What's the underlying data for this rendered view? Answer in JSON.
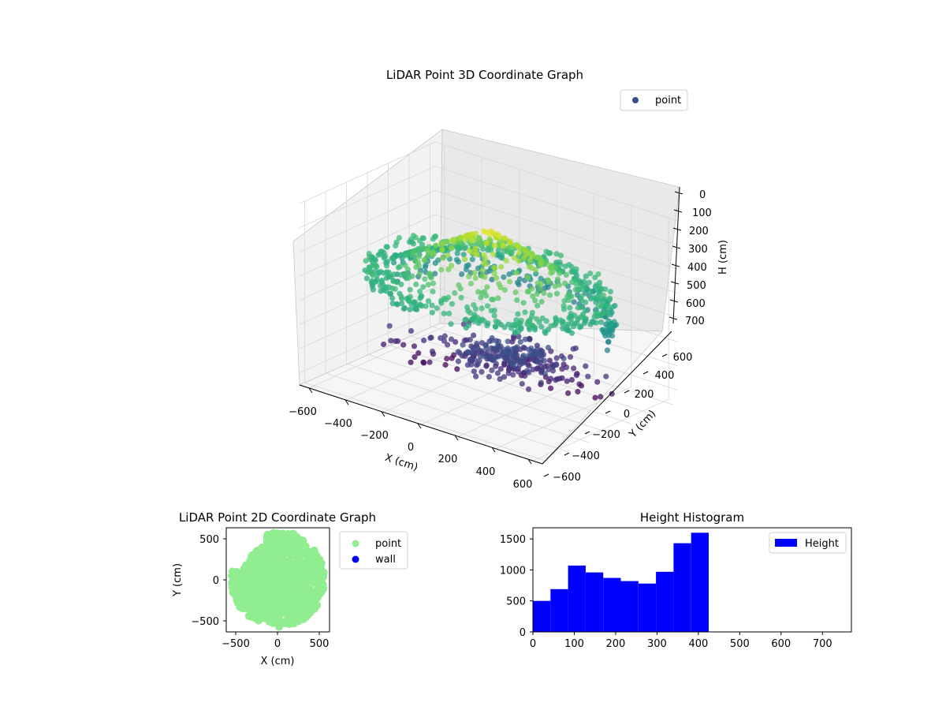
{
  "chart_data": [
    {
      "type": "scatter3d",
      "title": "LiDAR Point 3D Coordinate Graph",
      "xlabel": "X (cm)",
      "ylabel": "Y (cm)",
      "zlabel": "H (cm)",
      "xticks": [
        "−600",
        "−400",
        "−200",
        "0",
        "200",
        "400",
        "600"
      ],
      "yticks": [
        "−600",
        "−400",
        "−200",
        "0",
        "200",
        "400",
        "600"
      ],
      "zticks": [
        "0",
        "100",
        "200",
        "300",
        "400",
        "500",
        "600",
        "700"
      ],
      "xlim": [
        -650,
        650
      ],
      "ylim": [
        -650,
        650
      ],
      "zlim": [
        0,
        750
      ],
      "z_inverted": true,
      "colormap": "viridis",
      "grid": true,
      "legend": {
        "placement": "upper-right",
        "entries": [
          "point"
        ]
      }
    },
    {
      "type": "scatter",
      "title": "LiDAR Point 2D Coordinate Graph",
      "xlabel": "X (cm)",
      "ylabel": "Y (cm)",
      "xticks": [
        "−500",
        "0",
        "500"
      ],
      "yticks": [
        "500",
        "0",
        "−500"
      ],
      "xlim": [
        -620,
        620
      ],
      "ylim": [
        -620,
        620
      ],
      "series": [
        {
          "name": "point",
          "color": "#90ee90"
        },
        {
          "name": "wall",
          "color": "#0000ff"
        }
      ],
      "legend": {
        "placement": "outside-right",
        "entries": [
          "point",
          "wall"
        ]
      }
    },
    {
      "type": "bar",
      "title": "Height Histogram",
      "bin_edges": [
        0,
        42.5,
        85,
        127.5,
        170,
        212.5,
        255,
        297.5,
        340,
        382.5,
        425
      ],
      "values": [
        500,
        690,
        1070,
        960,
        870,
        820,
        780,
        970,
        1430,
        1600
      ],
      "xticks": [
        "0",
        "100",
        "200",
        "300",
        "400",
        "500",
        "600",
        "700"
      ],
      "yticks": [
        "0",
        "500",
        "1000",
        "1500"
      ],
      "xlim": [
        0,
        770
      ],
      "ylim": [
        0,
        1680
      ],
      "bar_color": "#0000ff",
      "legend": {
        "placement": "upper-right",
        "entries": [
          "Height"
        ]
      }
    }
  ]
}
